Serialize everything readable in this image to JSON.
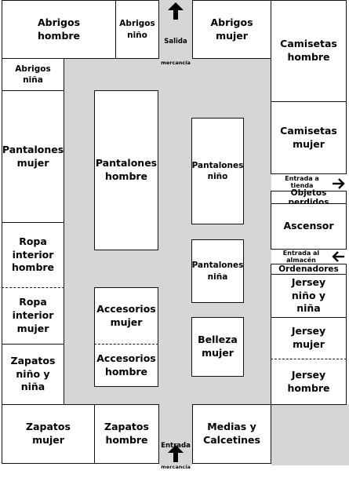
{
  "colors": {
    "floor": "#d6d6d6",
    "box": "#ffffff",
    "line": "#111111"
  },
  "sections": {
    "abrigos_hombre": "Abrigos\nhombre",
    "abrigos_nino": "Abrigos\nniño",
    "abrigos_mujer": "Abrigos\nmujer",
    "camisetas_hombre": "Camisetas\nhombre",
    "abrigos_nina": "Abrigos\nniña",
    "pantalones_mujer": "Pantalones\nmujer",
    "pantalones_hombre": "Pantalones\nhombre",
    "pantalones_nino": "Pantalones\nniño",
    "camisetas_mujer": "Camisetas\nmujer",
    "objetos_perdidos": "Objetos perdidos",
    "ascensor": "Ascensor",
    "ordenadores": "Ordenadores",
    "pantalones_nina": "Pantalones\nniña",
    "ropa_interior_hombre": "Ropa\ninterior\nhombre",
    "ropa_interior_mujer": "Ropa\ninterior\nmujer",
    "accesorios_mujer": "Accesorios\nmujer",
    "accesorios_hombre": "Accesorios\nhombre",
    "jersey_nino_nina": "Jersey\nniño y\nniña",
    "belleza_mujer": "Belleza\nmujer",
    "jersey_mujer": "Jersey\nmujer",
    "zapatos_nino_nina": "Zapatos\nniño y\nniña",
    "jersey_hombre": "Jersey\nhombre",
    "zapatos_mujer": "Zapatos\nmujer",
    "zapatos_hombre": "Zapatos\nhombre",
    "medias_calcetines": "Medias y\nCalcetines"
  },
  "labels": {
    "salida_title": "Salida",
    "salida_sub": "mercancía",
    "entrada_title": "Entrada",
    "entrada_sub": "mercancía",
    "entrada_tienda": "Entrada a\ntienda",
    "entrada_almacen": "Entrada al\nalmacén"
  },
  "icons": {
    "top_arrow": "arrow-up-icon",
    "bottom_arrow": "arrow-up-icon",
    "tienda_arrow": "arrow-right-icon",
    "almacen_arrow": "arrow-left-icon"
  }
}
